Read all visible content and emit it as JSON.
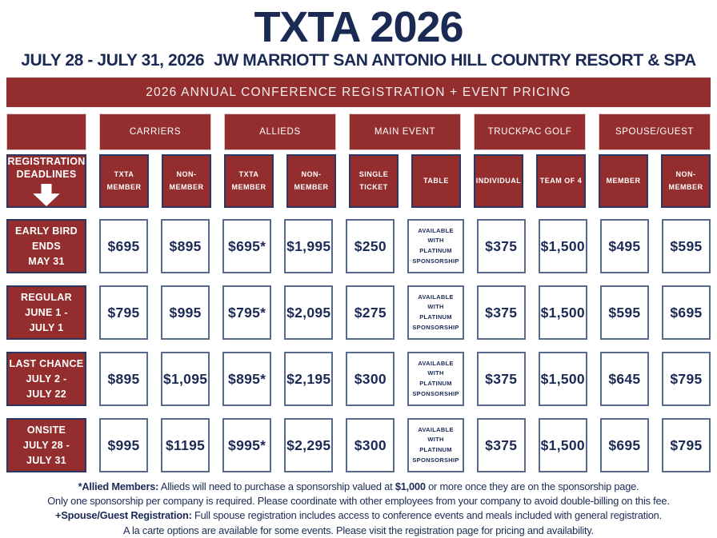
{
  "header": {
    "title": "TXTA 2026",
    "dates": "JULY 28 - JULY 31, 2026",
    "venue": "JW MARRIOTT SAN ANTONIO HILL COUNTRY RESORT & SPA"
  },
  "banner": {
    "text": "2026 ANNUAL CONFERENCE REGISTRATION + EVENT PRICING"
  },
  "colors": {
    "brand_red": "#942E2E",
    "brand_navy": "#1B2A55",
    "cell_border": "#56688B"
  },
  "table": {
    "corner": {
      "label": "REGISTRATION\nDEADLINES",
      "icon": "down-arrow-icon"
    },
    "categories": [
      "CARRIERS",
      "ALLIEDS",
      "MAIN EVENT",
      "TRUCKPAC GOLF",
      "SPOUSE/GUEST"
    ],
    "columns": [
      "TXTA\nMEMBER",
      "NON-\nMEMBER",
      "TXTA\nMEMBER",
      "NON-\nMEMBER",
      "SINGLE\nTICKET",
      "TABLE",
      "INDIVIDUAL",
      "TEAM OF 4",
      "MEMBER",
      "NON-\nMEMBER"
    ],
    "rows": [
      {
        "label": "EARLY BIRD\nENDS\nMAY 31",
        "values": [
          "$695",
          "$895",
          "$695*",
          "$1,995",
          "$250",
          "AVAILABLE WITH PLATINUM SPONSORSHIP",
          "$375",
          "$1,500",
          "$495",
          "$595"
        ]
      },
      {
        "label": "REGULAR\nJUNE 1 -\nJULY 1",
        "values": [
          "$795",
          "$995",
          "$795*",
          "$2,095",
          "$275",
          "AVAILABLE WITH PLATINUM SPONSORSHIP",
          "$375",
          "$1,500",
          "$595",
          "$695"
        ]
      },
      {
        "label": "LAST CHANCE\nJULY 2 -\nJULY 22",
        "values": [
          "$895",
          "$1,095",
          "$895*",
          "$2,195",
          "$300",
          "AVAILABLE WITH PLATINUM SPONSORSHIP",
          "$375",
          "$1,500",
          "$645",
          "$795"
        ]
      },
      {
        "label": "ONSITE\nJULY 28 -\nJULY 31",
        "values": [
          "$995",
          "$1195",
          "$995*",
          "$2,295",
          "$300",
          "AVAILABLE WITH PLATINUM SPONSORSHIP",
          "$375",
          "$1,500",
          "$695",
          "$795"
        ]
      }
    ]
  },
  "footnotes": [
    {
      "segments": [
        {
          "text": "*Allied Members:",
          "bold": true
        },
        {
          "text": " Allieds will need to purchase a sponsorship valued at ",
          "bold": false
        },
        {
          "text": "$1,000",
          "bold": true
        },
        {
          "text": " or more once they are on the sponsorship page.",
          "bold": false
        }
      ]
    },
    {
      "segments": [
        {
          "text": "Only one sponsorship per company is required. Please coordinate with other employees from your company to avoid double-billing on this fee.",
          "bold": false
        }
      ]
    },
    {
      "segments": [
        {
          "text": "+Spouse/Guest Registration:",
          "bold": true
        },
        {
          "text": " Full spouse registration includes access to conference events and meals included with general registration.",
          "bold": false
        }
      ]
    },
    {
      "segments": [
        {
          "text": "A la carte options are available for some events. Please visit the registration page for pricing and availability.",
          "bold": false
        }
      ]
    }
  ]
}
